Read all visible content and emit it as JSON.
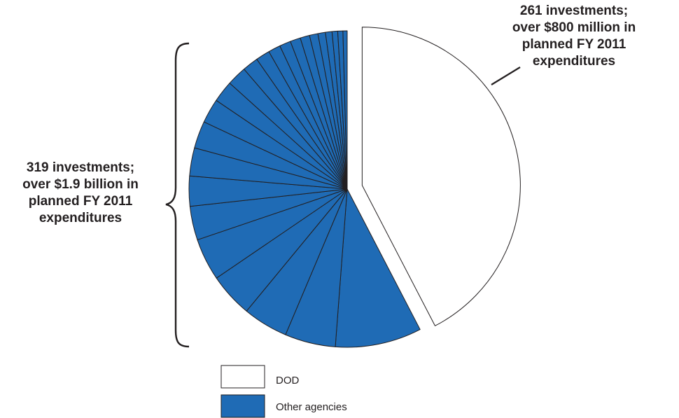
{
  "chart_data": {
    "type": "pie",
    "legend": [
      {
        "label": "DOD",
        "color": "#ffffff"
      },
      {
        "label": "Other agencies",
        "color": "#1f6bb5"
      }
    ],
    "slices": [
      {
        "name": "DOD",
        "value": 44.2,
        "color": "#ffffff",
        "exploded": true
      },
      {
        "name": "Other agencies",
        "value": 9.2
      },
      {
        "name": "Other agencies",
        "value": 5.4
      },
      {
        "name": "Other agencies",
        "value": 4.8
      },
      {
        "name": "Other agencies",
        "value": 4.7
      },
      {
        "name": "Other agencies",
        "value": 4.5
      },
      {
        "name": "Other agencies",
        "value": 3.6
      },
      {
        "name": "Other agencies",
        "value": 3.2
      },
      {
        "name": "Other agencies",
        "value": 3.0
      },
      {
        "name": "Other agencies",
        "value": 2.9
      },
      {
        "name": "Other agencies",
        "value": 2.6
      },
      {
        "name": "Other agencies",
        "value": 2.3
      },
      {
        "name": "Other agencies",
        "value": 2.1
      },
      {
        "name": "Other agencies",
        "value": 1.7
      },
      {
        "name": "Other agencies",
        "value": 1.5
      },
      {
        "name": "Other agencies",
        "value": 1.3
      },
      {
        "name": "Other agencies",
        "value": 1.2
      },
      {
        "name": "Other agencies",
        "value": 1.1
      },
      {
        "name": "Other agencies",
        "value": 1.0
      },
      {
        "name": "Other agencies",
        "value": 0.9
      },
      {
        "name": "Other agencies",
        "value": 0.8
      },
      {
        "name": "Other agencies",
        "value": 0.7
      },
      {
        "name": "Other agencies",
        "value": 0.6
      },
      {
        "name": "Other agencies",
        "value": 0.55
      },
      {
        "name": "Other agencies",
        "value": 0.45
      }
    ],
    "annotations": {
      "dod": [
        "261 investments;",
        "over $800 million in",
        "planned FY 2011",
        "expenditures"
      ],
      "other": [
        "319 investments;",
        "over $1.9 billion in",
        "planned FY 2011",
        "expenditures"
      ]
    }
  }
}
